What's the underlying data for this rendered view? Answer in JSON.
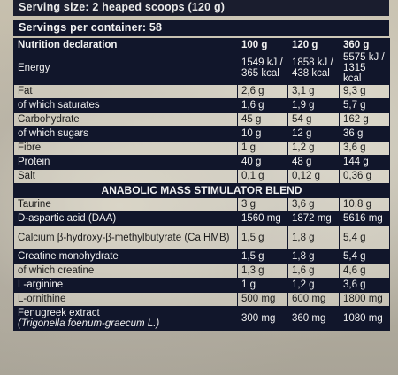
{
  "serving_size": "Serving size: 2 heaped scoops (120 g)",
  "servings_per_container": "Servings per container: 58",
  "columns": [
    "Nutrition declaration",
    "100 g",
    "120 g",
    "360 g"
  ],
  "rows": [
    {
      "label": "Energy",
      "v1": "1549 kJ / 365 kcal",
      "v2": "1858 kJ / 438 kcal",
      "v3": "5575 kJ / 1315 kcal"
    },
    {
      "label": "Fat",
      "v1": "2,6 g",
      "v2": "3,1 g",
      "v3": "9,3 g"
    },
    {
      "label": "of which saturates",
      "v1": "1,6 g",
      "v2": "1,9 g",
      "v3": "5,7 g"
    },
    {
      "label": "Carbohydrate",
      "v1": "45 g",
      "v2": "54 g",
      "v3": "162 g"
    },
    {
      "label": "of which sugars",
      "v1": "10 g",
      "v2": "12 g",
      "v3": "36 g"
    },
    {
      "label": "Fibre",
      "v1": "1 g",
      "v2": "1,2 g",
      "v3": "3,6 g"
    },
    {
      "label": "Protein",
      "v1": "40 g",
      "v2": "48 g",
      "v3": "144 g"
    },
    {
      "label": "Salt",
      "v1": "0,1 g",
      "v2": "0,12 g",
      "v3": "0,36 g"
    }
  ],
  "blend_title": "ANABOLIC MASS STIMULATOR BLEND",
  "blend_rows": [
    {
      "label": "Taurine",
      "v1": "3 g",
      "v2": "3,6 g",
      "v3": "10,8 g"
    },
    {
      "label": "D-aspartic acid (DAA)",
      "v1": "1560 mg",
      "v2": "1872 mg",
      "v3": "5616 mg"
    },
    {
      "label": "Calcium β-hydroxy-β-methylbutyrate (Ca HMB)",
      "v1": "1,5 g",
      "v2": "1,8 g",
      "v3": "5,4 g"
    },
    {
      "label": "Creatine monohydrate",
      "v1": "1,5 g",
      "v2": "1,8 g",
      "v3": "5,4 g"
    },
    {
      "label": "of which creatine",
      "v1": "1,3 g",
      "v2": "1,6 g",
      "v3": "4,6 g"
    },
    {
      "label": "L-arginine",
      "v1": "1 g",
      "v2": "1,2 g",
      "v3": "3,6 g"
    },
    {
      "label": "L-ornithine",
      "v1": "500 mg",
      "v2": "600 mg",
      "v3": "1800 mg"
    },
    {
      "label": "Fenugreek extract",
      "sublabel": "(Trigonella foenum-graecum L.)",
      "v1": "300 mg",
      "v2": "360 mg",
      "v3": "1080 mg"
    }
  ]
}
